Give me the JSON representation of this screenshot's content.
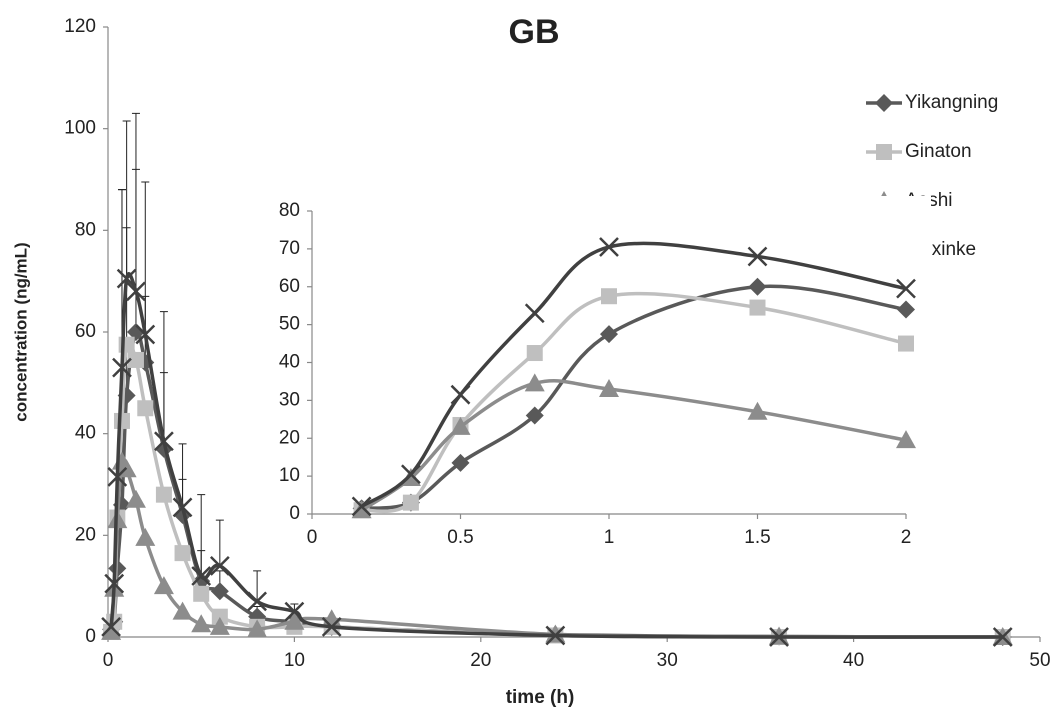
{
  "chart_data": [
    {
      "type": "line",
      "title": "GB",
      "x_label": "time (h)",
      "y_label": "concentration  (ng/mL)",
      "x": [
        0.167,
        0.333,
        0.5,
        0.75,
        1,
        1.5,
        2,
        3,
        4,
        5,
        6,
        8,
        10,
        12,
        24,
        36,
        48
      ],
      "xlim": [
        0,
        50
      ],
      "xticks": [
        0,
        10,
        20,
        30,
        40,
        50
      ],
      "ylim": [
        0,
        120
      ],
      "yticks": [
        0,
        20,
        40,
        60,
        80,
        100,
        120
      ],
      "grid": false,
      "legend": "upper right",
      "series": [
        {
          "name": "Yikangning",
          "color": "#595959",
          "marker": "diamond",
          "values": [
            1.5,
            3,
            13.5,
            26,
            47.5,
            60,
            54,
            37,
            24,
            11,
            9,
            4,
            3,
            2,
            0.5,
            0.1,
            0
          ],
          "errors": [
            null,
            null,
            null,
            62,
            33,
            32,
            13,
            15,
            7,
            6,
            4,
            2,
            2,
            null,
            null,
            null,
            null
          ]
        },
        {
          "name": "Ginaton",
          "color": "#bfbfbf",
          "marker": "square",
          "values": [
            1,
            3,
            23.5,
            42.5,
            57.5,
            54.5,
            45,
            28,
            16.5,
            8.5,
            4,
            2,
            2,
            2,
            0.3,
            0,
            0
          ]
        },
        {
          "name": "Aoshi",
          "color": "#8c8c8c",
          "marker": "triangle",
          "values": [
            1,
            9.5,
            23,
            34.5,
            33,
            27,
            19.5,
            10,
            5,
            2.5,
            2,
            1.5,
            3,
            3.5,
            0.5,
            0.1,
            0
          ]
        },
        {
          "name": "Yinxinke",
          "color": "#404040",
          "marker": "x",
          "values": [
            2,
            10.5,
            31.5,
            53,
            70.5,
            68,
            59.5,
            38.5,
            25.5,
            12,
            14,
            7,
            5,
            2,
            0.3,
            0,
            0
          ],
          "errors": [
            null,
            null,
            null,
            35,
            31,
            35,
            30,
            25.5,
            12.5,
            16,
            9,
            6,
            1.5,
            null,
            null,
            null,
            null
          ]
        }
      ]
    },
    {
      "type": "line",
      "x": [
        0.167,
        0.333,
        0.5,
        0.75,
        1,
        1.5,
        2
      ],
      "xlim": [
        0,
        2
      ],
      "xticks": [
        0,
        0.5,
        1,
        1.5,
        2
      ],
      "ylim": [
        0,
        80
      ],
      "yticks": [
        0,
        10,
        20,
        30,
        40,
        50,
        60,
        70,
        80
      ],
      "series": [
        {
          "color": "#595959",
          "marker": "diamond",
          "values": [
            1.5,
            3,
            13.5,
            26,
            47.5,
            60,
            54
          ]
        },
        {
          "color": "#bfbfbf",
          "marker": "square",
          "values": [
            1,
            3,
            23.5,
            42.5,
            57.5,
            54.5,
            45
          ]
        },
        {
          "color": "#8c8c8c",
          "marker": "triangle",
          "values": [
            1,
            9.5,
            23,
            34.5,
            33,
            27,
            19.5
          ]
        },
        {
          "color": "#404040",
          "marker": "x",
          "values": [
            2,
            10.5,
            31.5,
            53,
            70.5,
            68,
            59.5
          ]
        }
      ]
    }
  ]
}
